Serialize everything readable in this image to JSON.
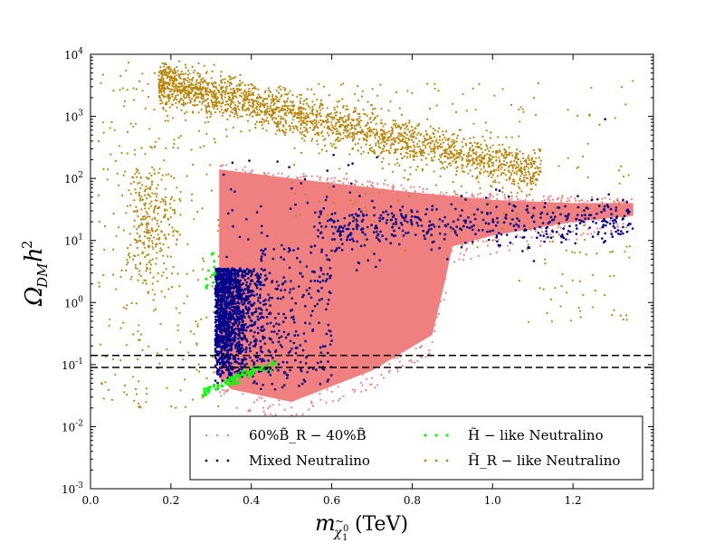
{
  "chart_data": {
    "type": "scatter",
    "xlabel": "m_{χ̃₁⁰} (TeV)",
    "ylabel": "Ω_{DM} h²",
    "xlim": [
      0.0,
      1.4
    ],
    "ylim": [
      0.001,
      10000
    ],
    "yscale": "log",
    "x_ticks": [
      "0.0",
      "0.2",
      "0.4",
      "0.6",
      "0.8",
      "1.0",
      "1.2"
    ],
    "y_ticks": [
      "10^-3",
      "10^-2",
      "10^-1",
      "10^0",
      "10^1",
      "10^2",
      "10^3",
      "10^4"
    ],
    "reference_lines": [
      0.09,
      0.14
    ],
    "legend_position": "bottom-right",
    "series": [
      {
        "name": "60% B̃_R − 40% B̃",
        "color": "#F08080",
        "region": {
          "upper_edge": [
            [
              0.32,
              140
            ],
            [
              0.5,
              100
            ],
            [
              0.8,
              60
            ],
            [
              1.0,
              45
            ],
            [
              1.2,
              40
            ],
            [
              1.35,
              40
            ]
          ],
          "lower_edge": [
            [
              0.32,
              0.06
            ],
            [
              0.35,
              0.04
            ],
            [
              0.5,
              0.025
            ],
            [
              0.7,
              0.08
            ],
            [
              0.85,
              0.3
            ],
            [
              0.88,
              2
            ],
            [
              0.9,
              8
            ],
            [
              1.0,
              12
            ],
            [
              1.2,
              20
            ],
            [
              1.35,
              25
            ]
          ]
        }
      },
      {
        "name": "Mixed Neutralino",
        "color": "#00008B",
        "points": [
          [
            0.31,
            0.05
          ],
          [
            0.33,
            0.3
          ],
          [
            0.35,
            1.0
          ],
          [
            0.38,
            2.5
          ],
          [
            0.4,
            0.8
          ],
          [
            0.42,
            0.2
          ],
          [
            0.45,
            0.1
          ],
          [
            0.47,
            0.5
          ],
          [
            0.5,
            1.0
          ],
          [
            0.6,
            3.0
          ],
          [
            0.8,
            20
          ],
          [
            1.0,
            25
          ],
          [
            1.2,
            30
          ],
          [
            1.28,
            900
          ]
        ]
      },
      {
        "name": "H̃ − like Neutralino",
        "color": "#00FF00",
        "points": [
          [
            0.28,
            0.037
          ],
          [
            0.3,
            0.04
          ],
          [
            0.33,
            0.05
          ],
          [
            0.36,
            0.06
          ],
          [
            0.4,
            0.07
          ],
          [
            0.45,
            0.09
          ],
          [
            0.29,
            3.0
          ],
          [
            0.3,
            5.0
          ],
          [
            0.29,
            1.5
          ]
        ]
      },
      {
        "name": "H̃_R − like Neutralino",
        "color": "#B8860B",
        "points": [
          [
            0.17,
            4000
          ],
          [
            0.25,
            2500
          ],
          [
            0.35,
            1500
          ],
          [
            0.45,
            800
          ],
          [
            0.55,
            500
          ],
          [
            0.7,
            250
          ],
          [
            0.9,
            150
          ],
          [
            1.1,
            100
          ],
          [
            1.3,
            60
          ],
          [
            0.16,
            20
          ],
          [
            0.1,
            5
          ],
          [
            0.05,
            0.5
          ],
          [
            0.1,
            0.02
          ],
          [
            1.2,
            1
          ],
          [
            1.3,
            0.5
          ]
        ]
      }
    ],
    "legend": {
      "entries": [
        "60%B̃_R − 40%B̃",
        "H̃ − like Neutralino",
        "Mixed Neutralino",
        "H̃_R − like Neutralino"
      ]
    }
  }
}
